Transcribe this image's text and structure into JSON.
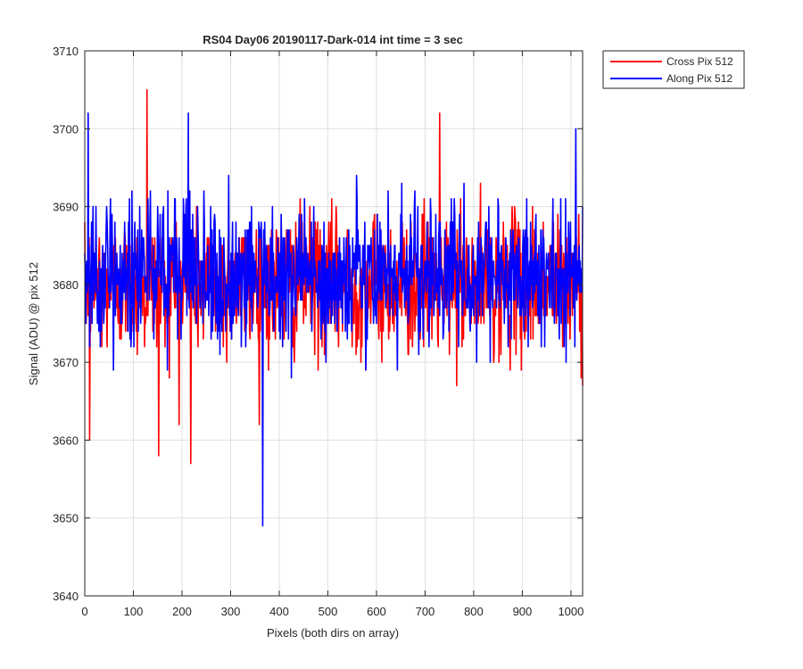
{
  "chart_data": {
    "type": "line",
    "title": "RS04 Day06 20190117-Dark-014 int time = 3 sec",
    "xlabel": "Pixels (both dirs on array)",
    "ylabel": "Signal (ADU) @ pix 512",
    "xlim": [
      0,
      1024
    ],
    "ylim": [
      3640,
      3710
    ],
    "xticks": [
      0,
      100,
      200,
      300,
      400,
      500,
      600,
      700,
      800,
      900,
      1000
    ],
    "yticks": [
      3640,
      3650,
      3660,
      3670,
      3680,
      3690,
      3700,
      3710
    ],
    "grid": true,
    "legend_position": "outside-top-right",
    "series": [
      {
        "name": "Cross Pix 512",
        "color": "#ff0000",
        "mean": 3680,
        "spread": 4.5,
        "key_points": [
          {
            "x": 0,
            "y": 3688
          },
          {
            "x": 10,
            "y": 3660
          },
          {
            "x": 128,
            "y": 3705
          },
          {
            "x": 152,
            "y": 3658
          },
          {
            "x": 218,
            "y": 3657
          },
          {
            "x": 730,
            "y": 3702
          },
          {
            "x": 1024,
            "y": 3667
          }
        ]
      },
      {
        "name": "Along Pix 512",
        "color": "#0000ff",
        "mean": 3681,
        "spread": 4.5,
        "key_points": [
          {
            "x": 0,
            "y": 3684
          },
          {
            "x": 7,
            "y": 3702
          },
          {
            "x": 213,
            "y": 3702
          },
          {
            "x": 366,
            "y": 3649
          },
          {
            "x": 1010,
            "y": 3700
          },
          {
            "x": 1024,
            "y": 3690
          }
        ]
      }
    ]
  }
}
